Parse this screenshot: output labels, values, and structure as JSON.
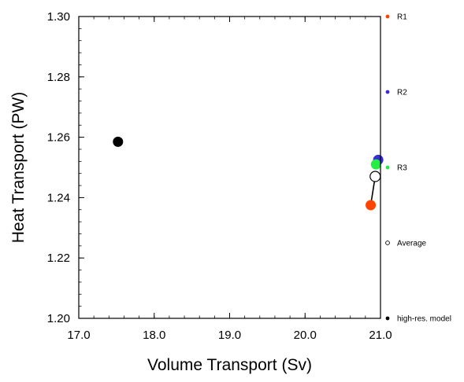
{
  "chart_data": {
    "type": "scatter",
    "title": "",
    "xlabel": "Volume Transport (Sv)",
    "ylabel": "Heat Transport (PW)",
    "xlim": [
      17.0,
      21.0
    ],
    "ylim": [
      1.2,
      1.3
    ],
    "xticks": [
      17.0,
      18.0,
      19.0,
      20.0,
      21.0
    ],
    "xtick_labels": [
      "17.0",
      "18.0",
      "19.0",
      "20.0",
      "21.0"
    ],
    "yticks": [
      1.2,
      1.22,
      1.24,
      1.26,
      1.28,
      1.3
    ],
    "ytick_labels": [
      "1.20",
      "1.22",
      "1.24",
      "1.26",
      "1.28",
      "1.30"
    ],
    "grid": false,
    "legend_placement": "right",
    "series": [
      {
        "name": "R1",
        "x": 20.87,
        "y": 1.2375,
        "color": "#ff4400",
        "marker": "filled"
      },
      {
        "name": "R2",
        "x": 20.97,
        "y": 1.2525,
        "color": "#3a2bd8",
        "marker": "filled"
      },
      {
        "name": "R3",
        "x": 20.94,
        "y": 1.251,
        "color": "#22ee44",
        "marker": "filled"
      },
      {
        "name": "Average",
        "x": 20.93,
        "y": 1.247,
        "color": "#000000",
        "marker": "open"
      },
      {
        "name": "high-res. model",
        "x": 17.52,
        "y": 1.2585,
        "color": "#000000",
        "marker": "filled"
      }
    ],
    "connector": {
      "from": "R1",
      "to": "Average",
      "color": "#000000"
    }
  }
}
